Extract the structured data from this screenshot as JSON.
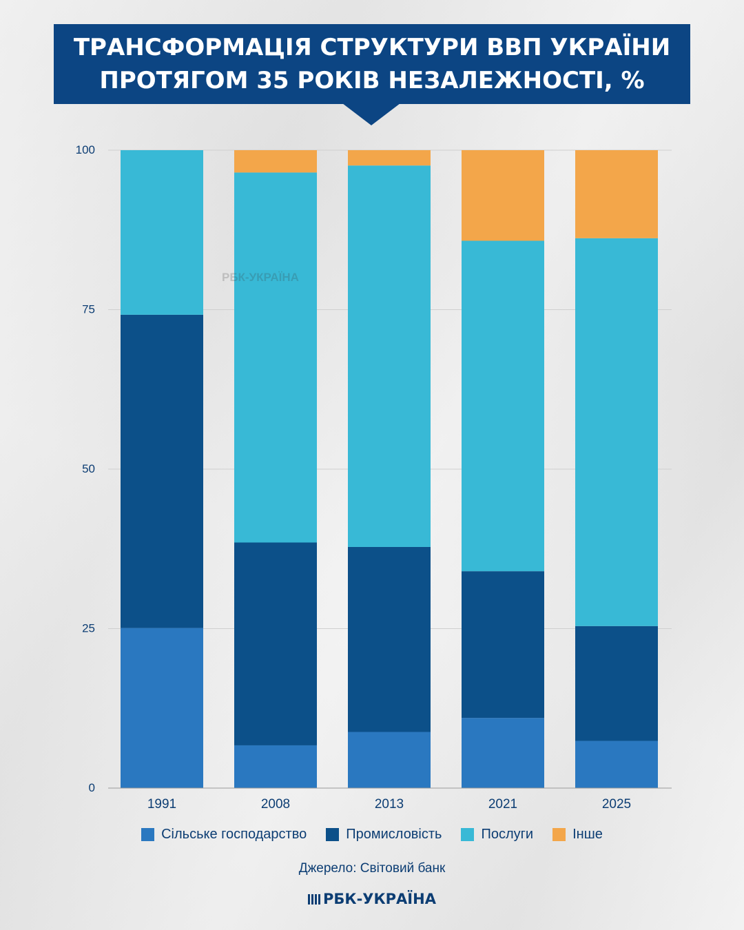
{
  "title": {
    "line1": "ТРАНСФОРМАЦІЯ СТРУКТУРИ ВВП УКРАЇНИ",
    "line2": "ПРОТЯГОМ 35 РОКІВ НЕЗАЛЕЖНОСТІ, %"
  },
  "source": "Джерело: Світовий банк",
  "brand": "РБК-УКРАЇНА",
  "watermark": "РБК-УКРАЇНА",
  "colors": {
    "agriculture": "#2a78c0",
    "industry": "#0c5089",
    "services": "#38b9d6",
    "other": "#f3a64a",
    "title_bg": "#0c4583",
    "text": "#0c3d73"
  },
  "chart_data": {
    "type": "bar",
    "stacked": true,
    "categories": [
      "1991",
      "2008",
      "2013",
      "2021",
      "2025"
    ],
    "ylim": [
      0,
      100
    ],
    "yticks": [
      0,
      25,
      50,
      75,
      100
    ],
    "grid": true,
    "legend_position": "bottom",
    "series": [
      {
        "name": "Сільське господарство",
        "color_key": "agriculture",
        "values": [
          25.1,
          6.7,
          8.8,
          11.0,
          7.4
        ]
      },
      {
        "name": "Промисловість",
        "color_key": "industry",
        "values": [
          49.1,
          31.8,
          29.0,
          23.0,
          18.0
        ]
      },
      {
        "name": "Послуги",
        "color_key": "services",
        "values": [
          25.8,
          58.0,
          59.8,
          51.8,
          60.8
        ]
      },
      {
        "name": "Інше",
        "color_key": "other",
        "values": [
          0.0,
          3.5,
          2.4,
          14.2,
          13.8
        ]
      }
    ]
  }
}
